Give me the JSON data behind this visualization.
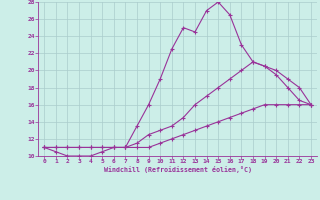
{
  "xlabel": "Windchill (Refroidissement éolien,°C)",
  "bg_color": "#cceee8",
  "grid_color": "#aacccc",
  "line_color": "#993399",
  "xlim": [
    -0.5,
    23.5
  ],
  "ylim": [
    10,
    28
  ],
  "yticks": [
    10,
    12,
    14,
    16,
    18,
    20,
    22,
    24,
    26,
    28
  ],
  "xticks": [
    0,
    1,
    2,
    3,
    4,
    5,
    6,
    7,
    8,
    9,
    10,
    11,
    12,
    13,
    14,
    15,
    16,
    17,
    18,
    19,
    20,
    21,
    22,
    23
  ],
  "line1_x": [
    0,
    1,
    2,
    3,
    4,
    5,
    6,
    7,
    8,
    9,
    10,
    11,
    12,
    13,
    14,
    15,
    16,
    17,
    18,
    19,
    20,
    21,
    22,
    23
  ],
  "line1_y": [
    11,
    10.5,
    10,
    10,
    10,
    10.5,
    11,
    11,
    13.5,
    16,
    19,
    22.5,
    25,
    24.5,
    27,
    28,
    26.5,
    23,
    21,
    20.5,
    19.5,
    18,
    16.5,
    16
  ],
  "line2_x": [
    0,
    1,
    2,
    3,
    4,
    5,
    6,
    7,
    8,
    9,
    10,
    11,
    12,
    13,
    14,
    15,
    16,
    17,
    18,
    19,
    20,
    21,
    22,
    23
  ],
  "line2_y": [
    11,
    11,
    11,
    11,
    11,
    11,
    11,
    11,
    11.5,
    12.5,
    13,
    13.5,
    14.5,
    16,
    17,
    18,
    19,
    20,
    21,
    20.5,
    20,
    19,
    18,
    16
  ],
  "line3_x": [
    0,
    1,
    2,
    3,
    4,
    5,
    6,
    7,
    8,
    9,
    10,
    11,
    12,
    13,
    14,
    15,
    16,
    17,
    18,
    19,
    20,
    21,
    22,
    23
  ],
  "line3_y": [
    11,
    11,
    11,
    11,
    11,
    11,
    11,
    11,
    11,
    11,
    11.5,
    12,
    12.5,
    13,
    13.5,
    14,
    14.5,
    15,
    15.5,
    16,
    16,
    16,
    16,
    16
  ]
}
